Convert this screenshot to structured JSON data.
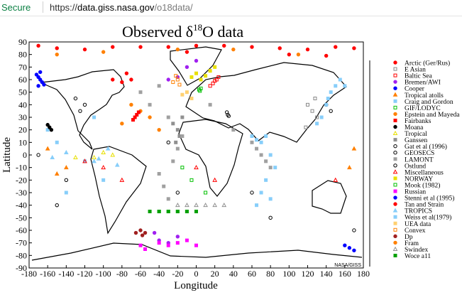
{
  "browser": {
    "secure_label": "Secure",
    "url_scheme": "https://",
    "url_host": "data.giss.nasa.gov",
    "url_path": "/o18data/"
  },
  "chart_data": {
    "type": "scatter",
    "title_main": "Observed δ",
    "title_sup": "18",
    "title_end": "O data",
    "xlabel": "Longitude",
    "ylabel": "Latitude",
    "xlim": [
      -180,
      180
    ],
    "ylim": [
      -90,
      90
    ],
    "xticks": [
      -180,
      -160,
      -140,
      -120,
      -100,
      -80,
      -60,
      -40,
      -20,
      0,
      20,
      40,
      60,
      80,
      100,
      120,
      140,
      160,
      180
    ],
    "yticks": [
      -90,
      -80,
      -70,
      -60,
      -50,
      -40,
      -30,
      -20,
      -10,
      0,
      10,
      20,
      30,
      40,
      50,
      60,
      70,
      80,
      90
    ],
    "credit": "NASA/GISS",
    "grid": false,
    "legend_placement": "right",
    "series": [
      {
        "name": "Arctic (Ger/Rus)",
        "color": "#ff0000",
        "marker": "circle",
        "points": [
          [
            -170,
            87
          ],
          [
            -150,
            85
          ],
          [
            -120,
            84
          ],
          [
            -90,
            86
          ],
          [
            -60,
            86
          ],
          [
            -30,
            86
          ],
          [
            0,
            87
          ],
          [
            30,
            87
          ],
          [
            60,
            86
          ],
          [
            90,
            85
          ],
          [
            120,
            84
          ],
          [
            150,
            86
          ],
          [
            170,
            85
          ],
          [
            100,
            80
          ],
          [
            140,
            79
          ],
          [
            -10,
            82
          ]
        ]
      },
      {
        "name": "E Asian",
        "color": "#888888",
        "marker": "square-open",
        "points": [
          [
            120,
            40
          ],
          [
            125,
            35
          ],
          [
            130,
            30
          ],
          [
            118,
            22
          ],
          [
            128,
            45
          ]
        ]
      },
      {
        "name": "Baltic Sea",
        "color": "#ff0000",
        "marker": "square-open",
        "points": [
          [
            18,
            57
          ],
          [
            20,
            59
          ],
          [
            22,
            60
          ],
          [
            15,
            55
          ],
          [
            24,
            62
          ]
        ]
      },
      {
        "name": "Bremen/AWI",
        "color": "#a020f0",
        "marker": "circle",
        "points": [
          [
            -30,
            60
          ],
          [
            -20,
            62
          ],
          [
            -10,
            70
          ],
          [
            0,
            75
          ],
          [
            -45,
            -62
          ],
          [
            -40,
            -68
          ],
          [
            -30,
            -70
          ],
          [
            -20,
            -65
          ]
        ]
      },
      {
        "name": "Cooper",
        "color": "#0000ff",
        "marker": "circle",
        "points": [
          [
            -170,
            62
          ],
          [
            -168,
            60
          ],
          [
            -166,
            58
          ],
          [
            -164,
            56
          ],
          [
            -172,
            64
          ],
          [
            -168,
            66
          ],
          [
            -170,
            55
          ]
        ]
      },
      {
        "name": "Tropical atolls",
        "color": "#ff8000",
        "marker": "triangle",
        "points": [
          [
            -150,
            -15
          ],
          [
            -140,
            -10
          ],
          [
            170,
            5
          ],
          [
            165,
            -10
          ],
          [
            -160,
            5
          ]
        ]
      },
      {
        "name": "Craig and Gordon",
        "color": "#87cefa",
        "marker": "square",
        "points": [
          [
            -160,
            20
          ],
          [
            -150,
            10
          ],
          [
            -120,
            -5
          ],
          [
            -100,
            -20
          ],
          [
            -140,
            -30
          ],
          [
            -110,
            30
          ]
        ]
      },
      {
        "name": "GIF/LODYC",
        "color": "#00c000",
        "marker": "square-open",
        "points": [
          [
            -40,
            -45
          ],
          [
            -30,
            -45
          ],
          [
            -20,
            -45
          ],
          [
            -10,
            -45
          ],
          [
            0,
            -45
          ],
          [
            -5,
            -20
          ],
          [
            -15,
            -10
          ],
          [
            10,
            -30
          ]
        ]
      },
      {
        "name": "Epstein and Mayeda",
        "color": "#ff8000",
        "marker": "circle",
        "points": [
          [
            -70,
            40
          ],
          [
            -60,
            35
          ],
          [
            -50,
            30
          ],
          [
            -80,
            25
          ],
          [
            -40,
            20
          ]
        ]
      },
      {
        "name": "Fairbanks",
        "color": "#ff0000",
        "marker": "square",
        "points": [
          [
            -64,
            32
          ],
          [
            -66,
            30
          ],
          [
            -62,
            34
          ],
          [
            -68,
            28
          ]
        ]
      },
      {
        "name": "Moana",
        "color": "#000000",
        "marker": "circle",
        "points": [
          [
            -158,
            22
          ],
          [
            -156,
            20
          ],
          [
            -160,
            24
          ]
        ]
      },
      {
        "name": "Tropical",
        "color": "#e8e000",
        "marker": "triangle-open",
        "points": [
          [
            -130,
            -2
          ],
          [
            -110,
            -2
          ],
          [
            -100,
            2
          ],
          [
            -90,
            0
          ]
        ]
      },
      {
        "name": "Ganssen",
        "color": "#909090",
        "marker": "square",
        "points": [
          [
            -20,
            20
          ],
          [
            -18,
            15
          ],
          [
            -22,
            10
          ],
          [
            -25,
            25
          ],
          [
            -15,
            30
          ]
        ]
      },
      {
        "name": "Gat et al (1996)",
        "color": "#000000",
        "marker": "circle-open",
        "points": [
          [
            34,
            32
          ],
          [
            33,
            34
          ],
          [
            35,
            31
          ]
        ]
      },
      {
        "name": "GEOSECS",
        "color": "#000000",
        "marker": "circle-open",
        "points": [
          [
            -150,
            -40
          ],
          [
            -140,
            -20
          ],
          [
            -170,
            0
          ],
          [
            -20,
            -30
          ],
          [
            -30,
            10
          ],
          [
            60,
            -30
          ],
          [
            80,
            -50
          ],
          [
            170,
            -60
          ]
        ]
      },
      {
        "name": "LAMONT",
        "color": "#a0a0a0",
        "marker": "square",
        "points": [
          [
            -30,
            -35
          ],
          [
            -35,
            -25
          ],
          [
            -40,
            -15
          ],
          [
            -25,
            -5
          ],
          [
            -20,
            5
          ],
          [
            -15,
            15
          ],
          [
            -30,
            30
          ],
          [
            -50,
            40
          ],
          [
            -60,
            50
          ],
          [
            -40,
            55
          ],
          [
            15,
            40
          ],
          [
            40,
            20
          ],
          [
            60,
            10
          ],
          [
            65,
            5
          ],
          [
            70,
            0
          ],
          [
            75,
            -5
          ],
          [
            80,
            -10
          ]
        ]
      },
      {
        "name": "Ostlund",
        "color": "#000000",
        "marker": "circle-open",
        "points": [
          [
            -125,
            35
          ],
          [
            -120,
            40
          ],
          [
            -130,
            45
          ],
          [
            140,
            40
          ],
          [
            145,
            35
          ]
        ]
      },
      {
        "name": "Miscellaneous",
        "color": "#ff0000",
        "marker": "triangle-open",
        "points": [
          [
            -120,
            -5
          ],
          [
            -100,
            -10
          ],
          [
            -80,
            -20
          ],
          [
            0,
            -10
          ],
          [
            20,
            -20
          ],
          [
            150,
            -20
          ]
        ]
      },
      {
        "name": "NORWAY",
        "color": "#e8e000",
        "marker": "square",
        "points": [
          [
            5,
            60
          ],
          [
            10,
            63
          ],
          [
            15,
            67
          ],
          [
            20,
            70
          ],
          [
            0,
            65
          ],
          [
            -5,
            62
          ]
        ]
      },
      {
        "name": "Mook (1982)",
        "color": "#00c000",
        "marker": "square-open",
        "points": [
          [
            3,
            52
          ],
          [
            5,
            53
          ],
          [
            4,
            51
          ]
        ]
      },
      {
        "name": "Russian",
        "color": "#ff00ff",
        "marker": "square",
        "points": [
          [
            -40,
            -70
          ],
          [
            -30,
            -72
          ],
          [
            -20,
            -70
          ],
          [
            -10,
            -68
          ],
          [
            0,
            -72
          ],
          [
            -60,
            -72
          ],
          [
            -55,
            -75
          ]
        ]
      },
      {
        "name": "Stenni et al (1995)",
        "color": "#0000ff",
        "marker": "circle",
        "points": [
          [
            160,
            -72
          ],
          [
            165,
            -74
          ],
          [
            170,
            -76
          ]
        ]
      },
      {
        "name": "Tan and Strain",
        "color": "#ff0000",
        "marker": "circle",
        "points": [
          [
            -70,
            60
          ],
          [
            -80,
            58
          ],
          [
            -90,
            60
          ],
          [
            -75,
            65
          ]
        ]
      },
      {
        "name": "TROPICS",
        "color": "#87cefa",
        "marker": "triangle",
        "points": [
          [
            -110,
            -5
          ],
          [
            -105,
            -3
          ],
          [
            -95,
            5
          ],
          [
            -85,
            -8
          ],
          [
            -140,
            2
          ],
          [
            -155,
            -2
          ]
        ]
      },
      {
        "name": "Weiss et al(1979)",
        "color": "#87cefa",
        "marker": "square",
        "points": [
          [
            140,
            40
          ],
          [
            142,
            45
          ],
          [
            145,
            50
          ],
          [
            150,
            55
          ],
          [
            155,
            60
          ],
          [
            160,
            55
          ],
          [
            135,
            30
          ],
          [
            130,
            25
          ],
          [
            60,
            15
          ],
          [
            65,
            12
          ],
          [
            70,
            10
          ],
          [
            75,
            15
          ],
          [
            80,
            0
          ],
          [
            85,
            -10
          ],
          [
            75,
            -20
          ],
          [
            70,
            -30
          ],
          [
            65,
            -40
          ],
          [
            80,
            -35
          ]
        ]
      },
      {
        "name": "UEA data",
        "color": "#ffd070",
        "marker": "square",
        "points": [
          [
            -10,
            50
          ],
          [
            -15,
            48
          ],
          [
            -5,
            45
          ]
        ]
      },
      {
        "name": "Convex",
        "color": "#ff8000",
        "marker": "square-open",
        "points": [
          [
            -20,
            60
          ],
          [
            -25,
            58
          ],
          [
            -18,
            56
          ],
          [
            -22,
            63
          ]
        ]
      },
      {
        "name": "Dp",
        "color": "#a02020",
        "marker": "circle",
        "points": [
          [
            -60,
            -60
          ],
          [
            -65,
            -62
          ],
          [
            -58,
            -64
          ],
          [
            -55,
            -62
          ]
        ]
      },
      {
        "name": "Fram",
        "color": "#ff8000",
        "marker": "circle",
        "points": [
          [
            -150,
            80
          ],
          [
            -100,
            82
          ],
          [
            -20,
            84
          ],
          [
            40,
            84
          ],
          [
            110,
            80
          ]
        ]
      },
      {
        "name": "Swindex",
        "color": "#909090",
        "marker": "triangle-open",
        "points": [
          [
            -20,
            -40
          ],
          [
            -10,
            -40
          ],
          [
            0,
            -40
          ],
          [
            10,
            -40
          ],
          [
            20,
            -40
          ],
          [
            30,
            -40
          ]
        ]
      },
      {
        "name": "Woce a11",
        "color": "#00a000",
        "marker": "square",
        "points": [
          [
            -50,
            -45
          ],
          [
            -40,
            -45
          ],
          [
            -30,
            -45
          ],
          [
            -20,
            -45
          ],
          [
            -10,
            -45
          ],
          [
            0,
            -45
          ]
        ]
      }
    ]
  }
}
